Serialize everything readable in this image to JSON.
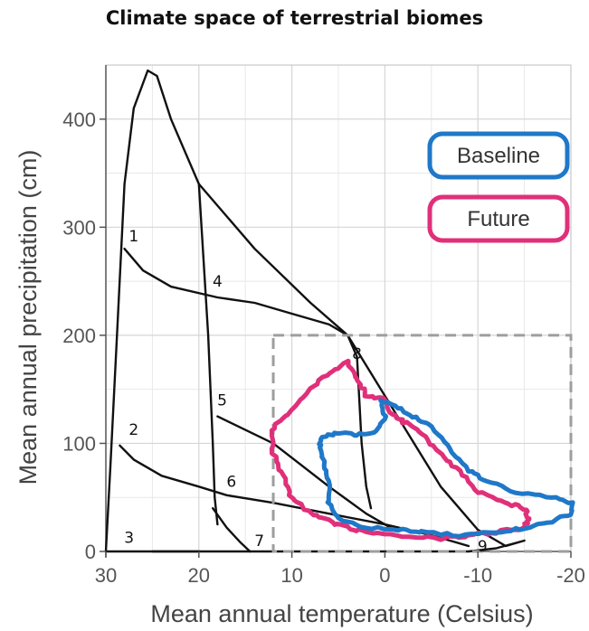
{
  "chart_data": {
    "type": "line",
    "title": "Climate space of terrestrial biomes",
    "xlabel": "Mean annual temperature (Celsius)",
    "ylabel": "Mean annual precipitation (cm)",
    "xlim": [
      30,
      -20
    ],
    "ylim": [
      0,
      450
    ],
    "x_ticks": [
      "30",
      "20",
      "10",
      "0",
      "-10",
      "-20"
    ],
    "y_ticks": [
      "0",
      "100",
      "200",
      "300",
      "400"
    ],
    "grid": true,
    "legend": {
      "position": "top-right",
      "entries": [
        {
          "label": "Baseline",
          "color": "#1f78c8"
        },
        {
          "label": "Future",
          "color": "#e0307a"
        }
      ]
    },
    "biome_labels": [
      "1",
      "2",
      "3",
      "4",
      "5",
      "6",
      "7",
      "8",
      "9"
    ],
    "biome_lines": [
      {
        "name": "outer-boundary",
        "points": [
          [
            30,
            0
          ],
          [
            29.5,
            80
          ],
          [
            28.8,
            200
          ],
          [
            28,
            340
          ],
          [
            27,
            410
          ],
          [
            25.5,
            445
          ],
          [
            24.5,
            440
          ],
          [
            23,
            400
          ],
          [
            20,
            340
          ],
          [
            14,
            280
          ],
          [
            8,
            230
          ],
          [
            4,
            200
          ],
          [
            -1,
            130
          ],
          [
            -6,
            60
          ],
          [
            -10,
            20
          ],
          [
            -13,
            5
          ],
          [
            -15,
            10
          ],
          [
            -12,
            3
          ],
          [
            -9,
            0
          ]
        ]
      },
      {
        "name": "base-line",
        "points": [
          [
            30,
            0
          ],
          [
            -9,
            0
          ]
        ]
      },
      {
        "name": "line-1",
        "points": [
          [
            28,
            280
          ],
          [
            26,
            260
          ],
          [
            23,
            245
          ],
          [
            18,
            235
          ],
          [
            14,
            230
          ],
          [
            10,
            220
          ],
          [
            6,
            210
          ],
          [
            4,
            200
          ]
        ]
      },
      {
        "name": "line-2",
        "points": [
          [
            28.5,
            98
          ],
          [
            27,
            85
          ],
          [
            24,
            70
          ],
          [
            20,
            60
          ],
          [
            17,
            52
          ],
          [
            12,
            45
          ],
          [
            6,
            35
          ],
          [
            0,
            25
          ],
          [
            -5,
            15
          ],
          [
            -9,
            5
          ]
        ]
      },
      {
        "name": "line-4",
        "points": [
          [
            20,
            340
          ],
          [
            19,
            200
          ],
          [
            18.5,
            100
          ],
          [
            18.3,
            50
          ],
          [
            18,
            25
          ]
        ]
      },
      {
        "name": "line-5",
        "points": [
          [
            18,
            125
          ],
          [
            12,
            100
          ],
          [
            6,
            60
          ],
          [
            2,
            35
          ],
          [
            -1,
            20
          ]
        ]
      },
      {
        "name": "line-6",
        "points": [
          [
            25,
            0
          ],
          [
            20,
            0
          ]
        ]
      },
      {
        "name": "line-7",
        "points": [
          [
            18.5,
            40
          ],
          [
            17,
            22
          ],
          [
            15.5,
            8
          ],
          [
            14.5,
            0
          ]
        ]
      },
      {
        "name": "line-8",
        "points": [
          [
            4,
            200
          ],
          [
            3,
            180
          ],
          [
            2.5,
            100
          ],
          [
            2,
            60
          ],
          [
            1.5,
            40
          ]
        ]
      }
    ],
    "series": [
      {
        "name": "Baseline",
        "color": "#1f78c8"
      },
      {
        "name": "Future",
        "color": "#e0307a"
      }
    ],
    "dashed_box": {
      "x": [
        12,
        -20
      ],
      "y": [
        0,
        200
      ],
      "color": "#9e9e9e"
    }
  }
}
